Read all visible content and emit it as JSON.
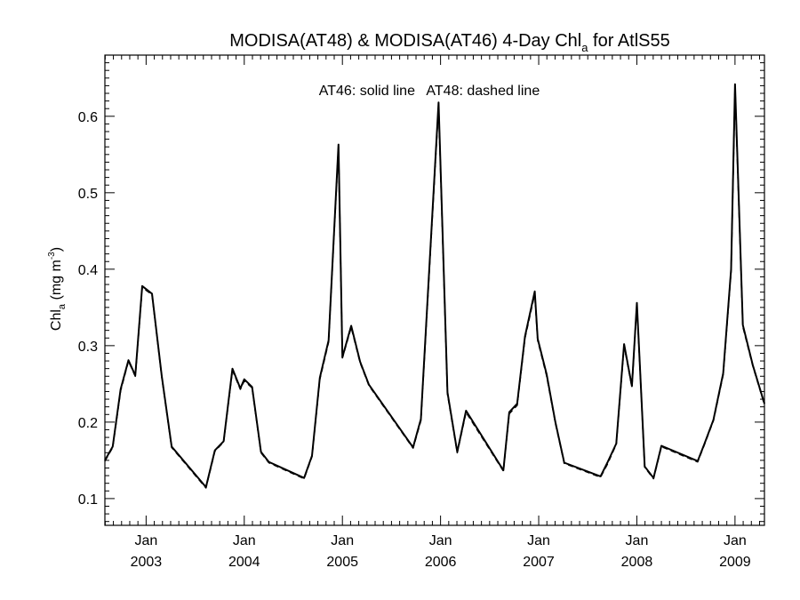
{
  "chart_data": {
    "type": "line",
    "title_main": "MODISA(AT48) & MODISA(AT46) 4-Day Chl",
    "title_sub": "a",
    "title_tail": " for AtlS55",
    "annotation": "AT46: solid line   AT48: dashed line",
    "ylabel_main": "Chl",
    "ylabel_sub": "a",
    "ylabel_units": " (mg m",
    "ylabel_exp": "-3",
    "ylabel_close": ")",
    "ylim": [
      0.065,
      0.68
    ],
    "xlim": [
      2002.58,
      2009.3
    ],
    "yticks": [
      0.1,
      0.2,
      0.3,
      0.4,
      0.5,
      0.6
    ],
    "ytick_labels": [
      "0.1",
      "0.2",
      "0.3",
      "0.4",
      "0.5",
      "0.6"
    ],
    "xticks": [
      {
        "month": "Jan",
        "year": "2003",
        "x": 2003.0
      },
      {
        "month": "Jan",
        "year": "2004",
        "x": 2004.0
      },
      {
        "month": "Jan",
        "year": "2005",
        "x": 2005.0
      },
      {
        "month": "Jan",
        "year": "2006",
        "x": 2006.0
      },
      {
        "month": "Jan",
        "year": "2007",
        "x": 2007.0
      },
      {
        "month": "Jan",
        "year": "2008",
        "x": 2008.0
      },
      {
        "month": "Jan",
        "year": "2009",
        "x": 2009.0
      }
    ],
    "series": [
      {
        "name": "AT46",
        "style": "solid",
        "x": [
          2002.58,
          2002.66,
          2002.74,
          2002.82,
          2002.89,
          2002.96,
          2003.06,
          2003.16,
          2003.26,
          2003.61,
          2003.7,
          2003.79,
          2003.88,
          2003.96,
          2004.0,
          2004.08,
          2004.17,
          2004.25,
          2004.61,
          2004.69,
          2004.77,
          2004.86,
          2004.96,
          2005.0,
          2005.09,
          2005.18,
          2005.27,
          2005.72,
          2005.8,
          2005.98,
          2006.07,
          2006.17,
          2006.26,
          2006.64,
          2006.7,
          2006.78,
          2006.86,
          2006.96,
          2006.99,
          2007.08,
          2007.17,
          2007.26,
          2007.63,
          2007.7,
          2007.79,
          2007.87,
          2007.95,
          2008.0,
          2008.08,
          2008.17,
          2008.25,
          2008.62,
          2008.69,
          2008.78,
          2008.88,
          2008.96,
          2009.0,
          2009.08,
          2009.18,
          2009.3
        ],
        "y": [
          0.15,
          0.168,
          0.243,
          0.281,
          0.261,
          0.378,
          0.368,
          0.26,
          0.168,
          0.115,
          0.163,
          0.175,
          0.27,
          0.244,
          0.256,
          0.246,
          0.161,
          0.148,
          0.127,
          0.156,
          0.258,
          0.307,
          0.563,
          0.285,
          0.326,
          0.279,
          0.249,
          0.167,
          0.204,
          0.618,
          0.239,
          0.161,
          0.215,
          0.137,
          0.213,
          0.224,
          0.312,
          0.371,
          0.309,
          0.263,
          0.2,
          0.147,
          0.129,
          0.147,
          0.172,
          0.302,
          0.247,
          0.356,
          0.142,
          0.127,
          0.169,
          0.149,
          0.172,
          0.203,
          0.264,
          0.4,
          0.642,
          0.327,
          0.275,
          0.224
        ]
      },
      {
        "name": "AT48",
        "style": "dashed",
        "x": [
          2002.58,
          2002.66,
          2002.74,
          2002.82,
          2002.89,
          2002.96,
          2003.06,
          2003.16,
          2003.26,
          2003.61,
          2003.7,
          2003.79,
          2003.88,
          2003.96,
          2004.0,
          2004.08,
          2004.17,
          2004.25,
          2004.61,
          2004.69,
          2004.77,
          2004.86,
          2004.96,
          2005.0,
          2005.09,
          2005.18,
          2005.27,
          2005.72,
          2005.8,
          2005.98,
          2006.07,
          2006.17,
          2006.26,
          2006.64,
          2006.7,
          2006.78,
          2006.86,
          2006.96,
          2006.99,
          2007.08,
          2007.17,
          2007.26,
          2007.63,
          2007.7,
          2007.79,
          2007.87,
          2007.95,
          2008.0,
          2008.08,
          2008.17,
          2008.25,
          2008.62,
          2008.69,
          2008.78,
          2008.88,
          2008.96,
          2009.0,
          2009.08,
          2009.18,
          2009.3
        ],
        "y": [
          0.149,
          0.167,
          0.241,
          0.28,
          0.26,
          0.376,
          0.367,
          0.259,
          0.167,
          0.114,
          0.162,
          0.174,
          0.268,
          0.243,
          0.254,
          0.245,
          0.16,
          0.147,
          0.126,
          0.155,
          0.256,
          0.305,
          0.56,
          0.284,
          0.324,
          0.278,
          0.248,
          0.166,
          0.202,
          0.614,
          0.237,
          0.16,
          0.213,
          0.136,
          0.211,
          0.222,
          0.31,
          0.368,
          0.307,
          0.261,
          0.199,
          0.146,
          0.128,
          0.145,
          0.171,
          0.3,
          0.246,
          0.354,
          0.141,
          0.126,
          0.168,
          0.148,
          0.171,
          0.202,
          0.262,
          0.398,
          0.638,
          0.325,
          0.274,
          0.223
        ]
      }
    ],
    "grid": false,
    "colors": {
      "line": "#000000",
      "background": "#ffffff"
    }
  }
}
